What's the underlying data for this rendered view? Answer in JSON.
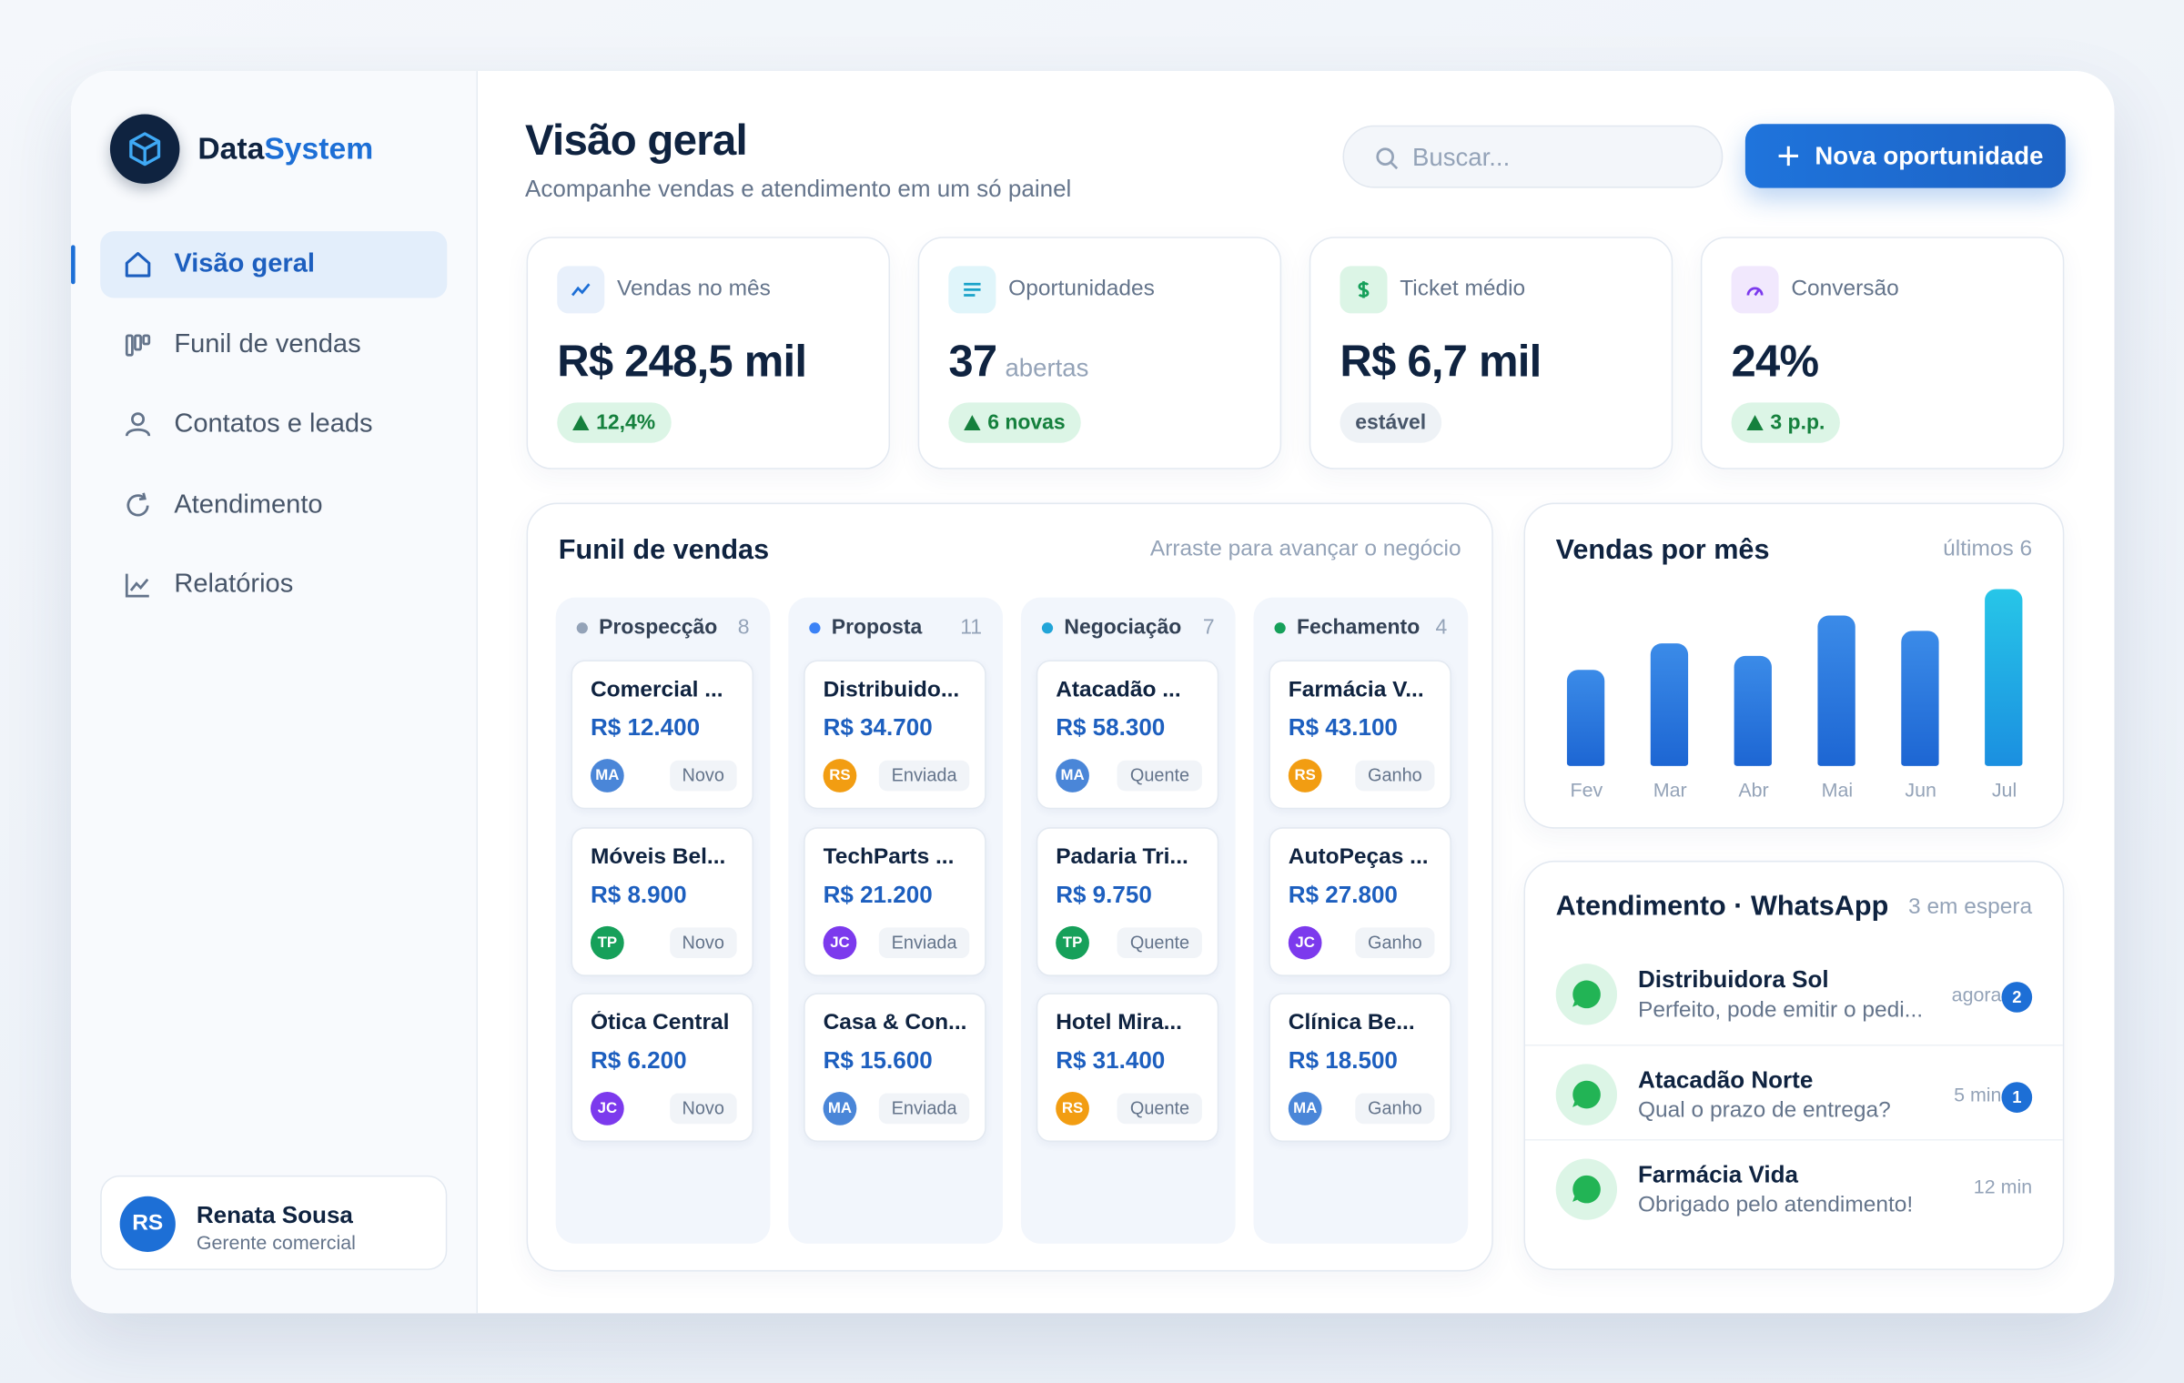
{
  "brand": {
    "name_a": "Data",
    "name_b": "System"
  },
  "nav": [
    {
      "label": "Visão geral",
      "active": true
    },
    {
      "label": "Funil de vendas"
    },
    {
      "label": "Contatos e leads"
    },
    {
      "label": "Atendimento"
    },
    {
      "label": "Relatórios"
    }
  ],
  "user": {
    "initials": "RS",
    "name": "Renata Sousa",
    "role": "Gerente comercial"
  },
  "header": {
    "title": "Visão geral",
    "subtitle": "Acompanhe vendas e atendimento em um só painel",
    "search_placeholder": "Buscar...",
    "button": "Nova oportunidade"
  },
  "kpis": [
    {
      "label": "Vendas no mês",
      "value": "R$ 248,5 mil",
      "badge": "12,4%",
      "trend": "up"
    },
    {
      "label": "Oportunidades",
      "value": "37",
      "suffix": "abertas",
      "badge": "6 novas",
      "trend": "up"
    },
    {
      "label": "Ticket médio",
      "value": "R$ 6,7 mil",
      "badge": "estável",
      "trend": "flat"
    },
    {
      "label": "Conversão",
      "value": "24%",
      "badge": "3 p.p.",
      "trend": "up"
    }
  ],
  "avatar_colors": {
    "MA": "#4a86d8",
    "RS": "#f29d12",
    "TP": "#16a05a",
    "JC": "#7c3aed"
  },
  "funnel": {
    "title": "Funil de vendas",
    "hint": "Arraste para avançar o negócio",
    "columns": [
      {
        "name": "Prospecção",
        "count": 8,
        "color": "#94a3b8",
        "cards": [
          {
            "name": "Comercial ...",
            "value": "R$ 12.400",
            "owner": "MA",
            "status": "Novo"
          },
          {
            "name": "Móveis Bel...",
            "value": "R$ 8.900",
            "owner": "TP",
            "status": "Novo"
          },
          {
            "name": "Ótica Central",
            "value": "R$ 6.200",
            "owner": "JC",
            "status": "Novo"
          }
        ]
      },
      {
        "name": "Proposta",
        "count": 11,
        "color": "#3b82f6",
        "cards": [
          {
            "name": "Distribuido...",
            "value": "R$ 34.700",
            "owner": "RS",
            "status": "Enviada"
          },
          {
            "name": "TechParts ...",
            "value": "R$ 21.200",
            "owner": "JC",
            "status": "Enviada"
          },
          {
            "name": "Casa & Con...",
            "value": "R$ 15.600",
            "owner": "MA",
            "status": "Enviada"
          }
        ]
      },
      {
        "name": "Negociação",
        "count": 7,
        "color": "#22a5d8",
        "cards": [
          {
            "name": "Atacadão ...",
            "value": "R$ 58.300",
            "owner": "MA",
            "status": "Quente"
          },
          {
            "name": "Padaria Tri...",
            "value": "R$ 9.750",
            "owner": "TP",
            "status": "Quente"
          },
          {
            "name": "Hotel Mira...",
            "value": "R$ 31.400",
            "owner": "RS",
            "status": "Quente"
          }
        ]
      },
      {
        "name": "Fechamento",
        "count": 4,
        "color": "#16a05a",
        "cards": [
          {
            "name": "Farmácia V...",
            "value": "R$ 43.100",
            "owner": "RS",
            "status": "Ganho"
          },
          {
            "name": "AutoPeças ...",
            "value": "R$ 27.800",
            "owner": "JC",
            "status": "Ganho"
          },
          {
            "name": "Clínica Be...",
            "value": "R$ 18.500",
            "owner": "MA",
            "status": "Ganho"
          }
        ]
      }
    ]
  },
  "sales_chart": {
    "type": "bar",
    "title": "Vendas por mês",
    "subtitle": "últimos 6",
    "categories": [
      "Fev",
      "Mar",
      "Abr",
      "Mai",
      "Jun",
      "Jul"
    ],
    "values": [
      69,
      88,
      79,
      108,
      97,
      127
    ]
  },
  "whatsapp": {
    "title": "Atendimento · WhatsApp",
    "subtitle": "3 em espera",
    "chats": [
      {
        "name": "Distribuidora Sol",
        "message": "Perfeito, pode emitir o pedi...",
        "time": "agora",
        "unread": 2
      },
      {
        "name": "Atacadão Norte",
        "message": "Qual o prazo de entrega?",
        "time": "5 min",
        "unread": 1
      },
      {
        "name": "Farmácia Vida",
        "message": "Obrigado pelo atendimento!",
        "time": "12 min"
      }
    ]
  }
}
